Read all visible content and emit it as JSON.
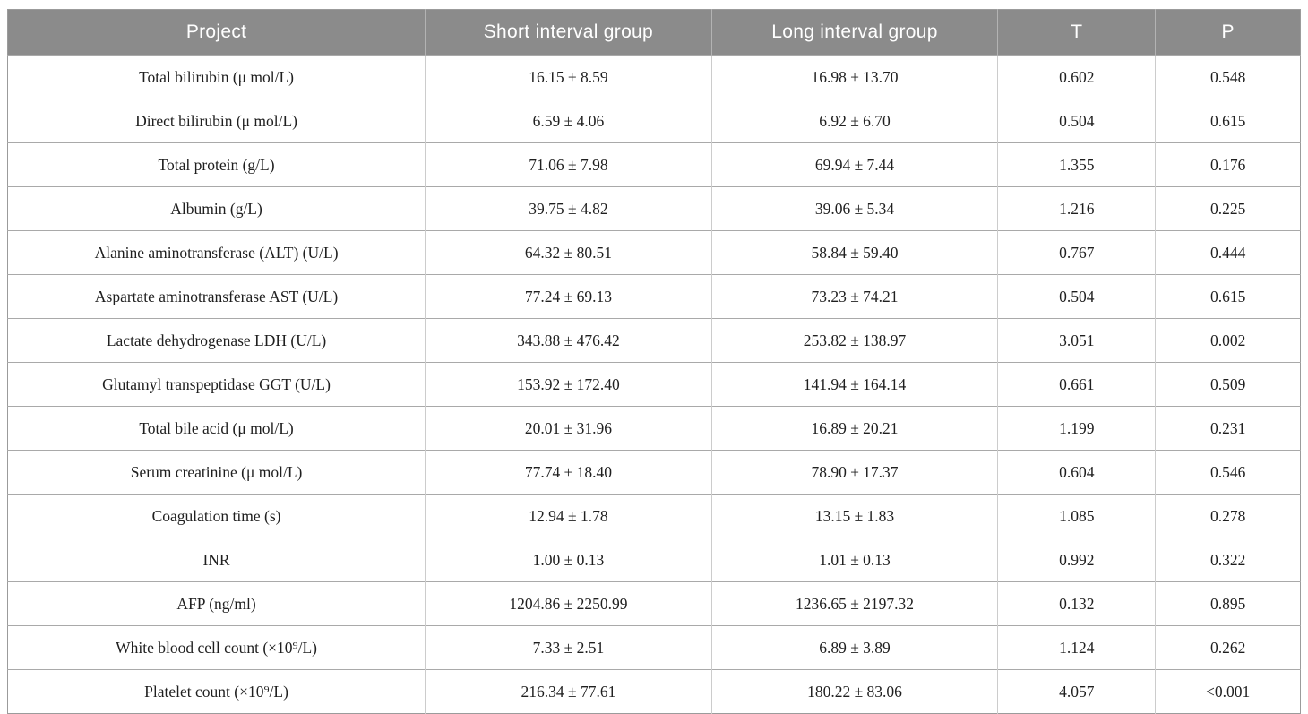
{
  "table": {
    "columns": [
      {
        "id": "project",
        "label": "Project"
      },
      {
        "id": "short",
        "label": "Short interval group"
      },
      {
        "id": "long",
        "label": "Long interval group"
      },
      {
        "id": "t",
        "label": "T"
      },
      {
        "id": "p",
        "label": "P"
      }
    ],
    "rows": [
      {
        "project": "Total bilirubin (μ mol/L)",
        "short": "16.15 ± 8.59",
        "long": "16.98 ± 13.70",
        "t": "0.602",
        "p": "0.548"
      },
      {
        "project": "Direct bilirubin (μ mol/L)",
        "short": "6.59 ± 4.06",
        "long": "6.92 ± 6.70",
        "t": "0.504",
        "p": "0.615"
      },
      {
        "project": "Total protein (g/L)",
        "short": "71.06 ± 7.98",
        "long": "69.94 ± 7.44",
        "t": "1.355",
        "p": "0.176"
      },
      {
        "project": "Albumin (g/L)",
        "short": "39.75 ± 4.82",
        "long": "39.06 ± 5.34",
        "t": "1.216",
        "p": "0.225"
      },
      {
        "project": "Alanine aminotransferase (ALT) (U/L)",
        "short": "64.32 ± 80.51",
        "long": "58.84 ± 59.40",
        "t": "0.767",
        "p": "0.444"
      },
      {
        "project": "Aspartate aminotransferase AST (U/L)",
        "short": "77.24 ± 69.13",
        "long": "73.23 ± 74.21",
        "t": "0.504",
        "p": "0.615"
      },
      {
        "project": "Lactate dehydrogenase LDH (U/L)",
        "short": "343.88 ± 476.42",
        "long": "253.82 ± 138.97",
        "t": "3.051",
        "p": "0.002"
      },
      {
        "project": "Glutamyl transpeptidase GGT (U/L)",
        "short": "153.92 ± 172.40",
        "long": "141.94 ± 164.14",
        "t": "0.661",
        "p": "0.509"
      },
      {
        "project": "Total bile acid (μ mol/L)",
        "short": "20.01 ± 31.96",
        "long": "16.89 ± 20.21",
        "t": "1.199",
        "p": "0.231"
      },
      {
        "project": "Serum creatinine (μ mol/L)",
        "short": "77.74 ± 18.40",
        "long": "78.90 ± 17.37",
        "t": "0.604",
        "p": "0.546"
      },
      {
        "project": "Coagulation time (s)",
        "short": "12.94 ± 1.78",
        "long": "13.15 ± 1.83",
        "t": "1.085",
        "p": "0.278"
      },
      {
        "project": "INR",
        "short": "1.00 ± 0.13",
        "long": "1.01 ± 0.13",
        "t": "0.992",
        "p": "0.322"
      },
      {
        "project": "AFP (ng/ml)",
        "short": "1204.86 ± 2250.99",
        "long": "1236.65 ± 2197.32",
        "t": "0.132",
        "p": "0.895"
      },
      {
        "project": "White blood cell count (×10⁹/L)",
        "short": "7.33 ± 2.51",
        "long": "6.89 ± 3.89",
        "t": "1.124",
        "p": "0.262"
      },
      {
        "project": "Platelet count (×10⁹/L)",
        "short": "216.34 ± 77.61",
        "long": "180.22 ± 83.06",
        "t": "4.057",
        "p": "<0.001"
      }
    ],
    "colors": {
      "page_bg": "#ffffff",
      "header_bg": "#8b8b8b",
      "header_text": "#ffffff",
      "header_divider": "#b3b3b3",
      "body_text": "#1f1f1f",
      "row_border": "#a9a9a9",
      "col_border": "#cccccc",
      "outer_border": "#9b9b9b"
    }
  }
}
